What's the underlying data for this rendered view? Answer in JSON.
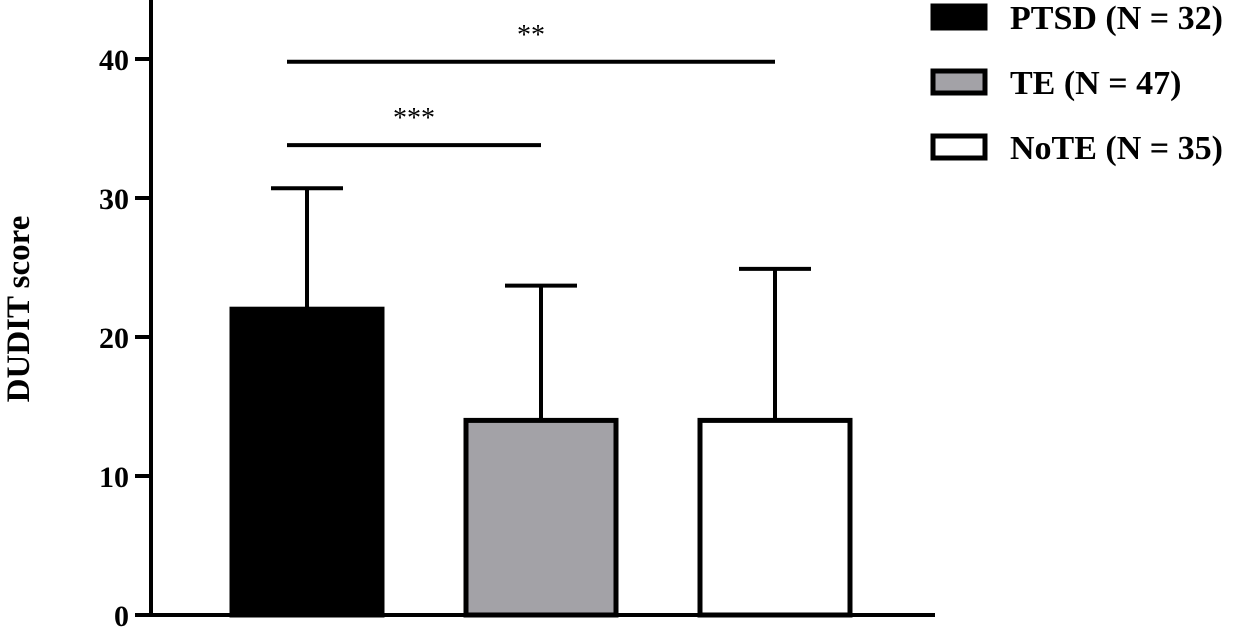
{
  "chart_data": {
    "type": "bar",
    "title": "",
    "xlabel": "",
    "ylabel": "DUDIT score",
    "ylim": [
      0,
      44
    ],
    "yticks": [
      0,
      10,
      20,
      30,
      40
    ],
    "grid": false,
    "legend_position": "top-right",
    "series": [
      {
        "name": "PTSD (N = 32)",
        "value": 22,
        "error": 8.7,
        "color": "#000000"
      },
      {
        "name": "TE (N = 47)",
        "value": 14,
        "error": 9.7,
        "color": "#a3a2a7"
      },
      {
        "name": "NoTE (N = 35)",
        "value": 14,
        "error": 10.9,
        "color": "#ffffff"
      }
    ],
    "significance": [
      {
        "from": 0,
        "to": 1,
        "y": 33.8,
        "label": "***"
      },
      {
        "from": 0,
        "to": 2,
        "y": 39.8,
        "label": "**"
      }
    ]
  }
}
